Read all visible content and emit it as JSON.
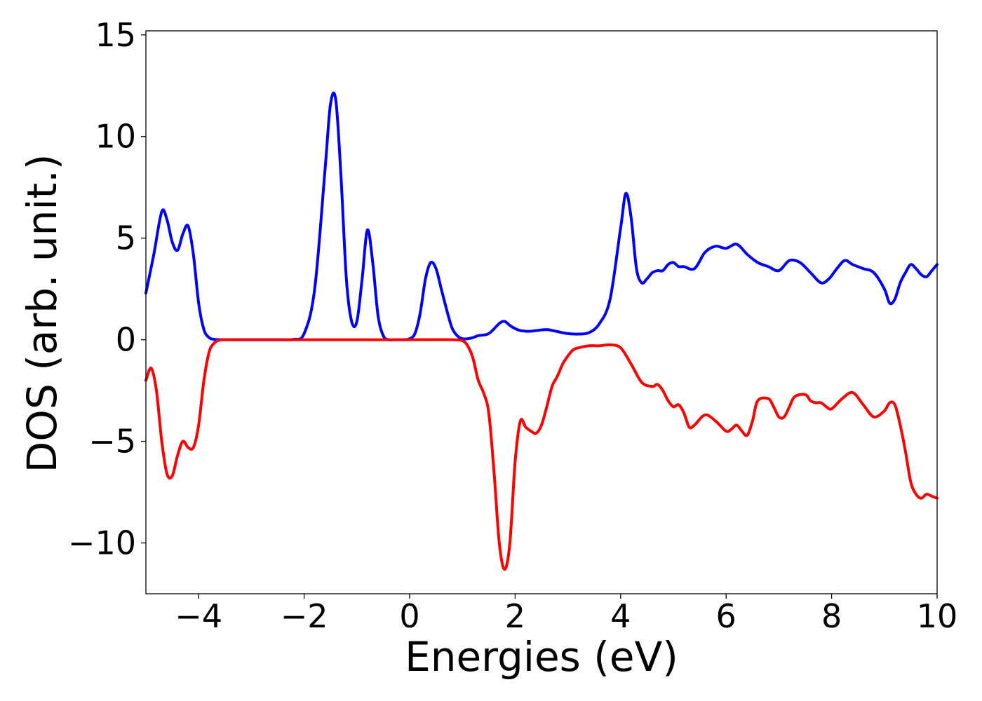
{
  "chart_data": {
    "type": "line",
    "title": "",
    "xlabel": "Energies (eV)",
    "ylabel": "DOS (arb. unit.)",
    "xlim": [
      -5,
      10
    ],
    "ylim": [
      -12.5,
      15.2
    ],
    "xticks": [
      -4,
      -2,
      0,
      2,
      4,
      6,
      8,
      10
    ],
    "xtick_labels": [
      "−4",
      "−2",
      "0",
      "2",
      "4",
      "6",
      "8",
      "10"
    ],
    "yticks": [
      -10,
      -5,
      0,
      5,
      10,
      15
    ],
    "ytick_labels": [
      "−10",
      "−5",
      "0",
      "5",
      "10",
      "15"
    ],
    "grid": false,
    "legend": "none",
    "series": [
      {
        "color": "#0000ff",
        "x": [
          -5.0,
          -4.85,
          -4.7,
          -4.6,
          -4.5,
          -4.4,
          -4.3,
          -4.2,
          -4.1,
          -4.0,
          -3.9,
          -3.8,
          -3.7,
          -3.6,
          -3.5,
          -3.4,
          -3.2,
          -2.8,
          -2.4,
          -2.2,
          -2.0,
          -1.8,
          -1.6,
          -1.5,
          -1.4,
          -1.3,
          -1.2,
          -1.1,
          -1.0,
          -0.9,
          -0.8,
          -0.7,
          -0.6,
          -0.5,
          -0.4,
          -0.3,
          -0.2,
          -0.1,
          0.0,
          0.1,
          0.2,
          0.3,
          0.4,
          0.5,
          0.6,
          0.7,
          0.8,
          0.9,
          1.0,
          1.1,
          1.2,
          1.3,
          1.5,
          1.7,
          1.8,
          1.9,
          2.0,
          2.1,
          2.2,
          2.3,
          2.4,
          2.6,
          2.8,
          3.0,
          3.2,
          3.4,
          3.6,
          3.8,
          4.0,
          4.1,
          4.2,
          4.3,
          4.4,
          4.5,
          4.6,
          4.7,
          4.8,
          4.9,
          5.0,
          5.1,
          5.2,
          5.4,
          5.6,
          5.8,
          6.0,
          6.2,
          6.4,
          6.6,
          6.8,
          7.0,
          7.2,
          7.4,
          7.6,
          7.8,
          7.95,
          8.1,
          8.25,
          8.4,
          8.6,
          8.8,
          9.0,
          9.1,
          9.2,
          9.3,
          9.4,
          9.5,
          9.6,
          9.7,
          9.8,
          9.9,
          10.0
        ],
        "y": [
          2.3,
          4.2,
          6.3,
          5.9,
          4.8,
          4.4,
          5.2,
          5.6,
          4.2,
          1.8,
          0.5,
          0.1,
          0.02,
          0.0,
          0.0,
          0.0,
          0.0,
          0.0,
          0.0,
          0.02,
          0.3,
          2.5,
          8.5,
          11.6,
          11.8,
          8.0,
          3.0,
          0.9,
          0.9,
          3.0,
          5.4,
          3.8,
          1.2,
          0.2,
          0.0,
          0.0,
          0.0,
          0.0,
          0.05,
          0.3,
          1.3,
          3.0,
          3.8,
          3.5,
          2.5,
          1.5,
          0.6,
          0.2,
          0.05,
          0.05,
          0.1,
          0.2,
          0.3,
          0.8,
          0.9,
          0.7,
          0.55,
          0.45,
          0.42,
          0.42,
          0.45,
          0.5,
          0.4,
          0.3,
          0.28,
          0.35,
          0.8,
          2.0,
          5.5,
          7.2,
          6.0,
          3.5,
          2.8,
          3.0,
          3.3,
          3.4,
          3.4,
          3.7,
          3.8,
          3.6,
          3.6,
          3.5,
          4.3,
          4.6,
          4.5,
          4.7,
          4.2,
          3.8,
          3.6,
          3.4,
          3.9,
          3.8,
          3.3,
          2.8,
          3.0,
          3.5,
          3.9,
          3.7,
          3.5,
          3.3,
          2.5,
          1.8,
          2.0,
          2.8,
          3.3,
          3.7,
          3.5,
          3.2,
          3.1,
          3.4,
          3.7
        ]
      },
      {
        "color": "#ff0000",
        "x": [
          -5.0,
          -4.9,
          -4.8,
          -4.7,
          -4.6,
          -4.5,
          -4.4,
          -4.3,
          -4.2,
          -4.1,
          -4.0,
          -3.9,
          -3.8,
          -3.7,
          -3.6,
          -3.5,
          -3.4,
          -3.2,
          -2.0,
          0.0,
          0.8,
          1.0,
          1.1,
          1.2,
          1.3,
          1.4,
          1.5,
          1.6,
          1.7,
          1.8,
          1.9,
          2.0,
          2.1,
          2.2,
          2.3,
          2.4,
          2.5,
          2.6,
          2.7,
          2.8,
          2.9,
          3.0,
          3.1,
          3.2,
          3.4,
          3.6,
          3.8,
          4.0,
          4.2,
          4.4,
          4.6,
          4.7,
          4.8,
          4.9,
          5.0,
          5.1,
          5.2,
          5.3,
          5.4,
          5.6,
          5.8,
          6.0,
          6.1,
          6.2,
          6.3,
          6.4,
          6.5,
          6.6,
          6.8,
          6.9,
          7.0,
          7.1,
          7.2,
          7.3,
          7.5,
          7.6,
          7.7,
          7.8,
          7.9,
          8.0,
          8.2,
          8.4,
          8.6,
          8.8,
          9.0,
          9.1,
          9.2,
          9.3,
          9.4,
          9.5,
          9.6,
          9.7,
          9.8,
          9.9,
          10.0
        ],
        "y": [
          -2.0,
          -1.4,
          -2.5,
          -5.0,
          -6.6,
          -6.7,
          -5.7,
          -5.0,
          -5.3,
          -5.3,
          -4.2,
          -2.0,
          -0.6,
          -0.15,
          -0.02,
          0.0,
          0.0,
          0.0,
          0.0,
          0.0,
          0.0,
          -0.05,
          -0.3,
          -0.9,
          -2.0,
          -2.6,
          -3.6,
          -6.5,
          -10.0,
          -11.3,
          -10.0,
          -6.0,
          -4.0,
          -4.3,
          -4.5,
          -4.6,
          -4.2,
          -3.3,
          -2.3,
          -1.8,
          -1.2,
          -0.8,
          -0.5,
          -0.4,
          -0.3,
          -0.3,
          -0.25,
          -0.4,
          -1.2,
          -2.1,
          -2.3,
          -2.2,
          -2.5,
          -3.0,
          -3.3,
          -3.2,
          -3.6,
          -4.3,
          -4.2,
          -3.7,
          -4.0,
          -4.5,
          -4.4,
          -4.2,
          -4.5,
          -4.7,
          -4.0,
          -3.0,
          -2.9,
          -3.3,
          -3.8,
          -3.8,
          -3.3,
          -2.8,
          -2.7,
          -3.0,
          -3.1,
          -3.1,
          -3.3,
          -3.4,
          -2.9,
          -2.6,
          -3.2,
          -3.8,
          -3.5,
          -3.1,
          -3.2,
          -4.2,
          -5.5,
          -7.0,
          -7.6,
          -7.8,
          -7.6,
          -7.7,
          -7.8
        ]
      }
    ]
  }
}
